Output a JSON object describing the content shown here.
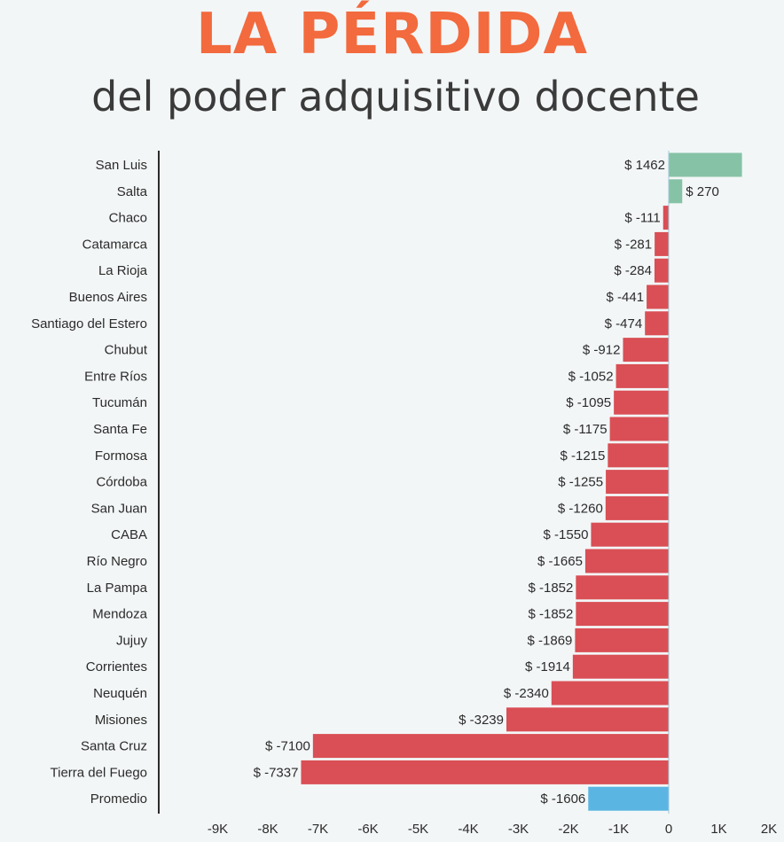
{
  "title": "LA PÉRDIDA",
  "subtitle": "del poder adquisitivo docente",
  "colors": {
    "positive": "#86c3a6",
    "negative": "#d94f55",
    "average": "#5bb5e2",
    "title": "#f26a3d",
    "axis": "#2b2b2b"
  },
  "chart_data": {
    "type": "bar",
    "orientation": "horizontal",
    "title": "LA PÉRDIDA",
    "subtitle": "del poder adquisitivo docente",
    "xlabel": "",
    "ylabel": "",
    "xlim": [
      -9700,
      2000
    ],
    "x_ticks": [
      {
        "value": -9000,
        "label": "-9K"
      },
      {
        "value": -8000,
        "label": "-8K"
      },
      {
        "value": -7000,
        "label": "-7K"
      },
      {
        "value": -6000,
        "label": "-6K"
      },
      {
        "value": -5000,
        "label": "-5K"
      },
      {
        "value": -4000,
        "label": "-4K"
      },
      {
        "value": -3000,
        "label": "-3K"
      },
      {
        "value": -2000,
        "label": "-2K"
      },
      {
        "value": -1000,
        "label": "-1K"
      },
      {
        "value": 0,
        "label": "0"
      },
      {
        "value": 1000,
        "label": "1K"
      },
      {
        "value": 2000,
        "label": "2K"
      }
    ],
    "categories": [
      "San Luis",
      "Salta",
      "Chaco",
      "Catamarca",
      "La Rioja",
      "Buenos Aires",
      "Santiago del Estero",
      "Chubut",
      "Entre Ríos",
      "Tucumán",
      "Santa Fe",
      "Formosa",
      "Córdoba",
      "San Juan",
      "CABA",
      "Río Negro",
      "La Pampa",
      "Mendoza",
      "Jujuy",
      "Corrientes",
      "Neuquén",
      "Misiones",
      "Santa Cruz",
      "Tierra del Fuego",
      "Promedio"
    ],
    "values": [
      1462,
      270,
      -111,
      -281,
      -284,
      -441,
      -474,
      -912,
      -1052,
      -1095,
      -1175,
      -1215,
      -1255,
      -1260,
      -1550,
      -1665,
      -1852,
      -1852,
      -1869,
      -1914,
      -2340,
      -3239,
      -7100,
      -7337,
      -1606
    ],
    "value_labels": [
      "$ 1462",
      "$ 270",
      "$ -111",
      "$ -281",
      "$ -284",
      "$ -441",
      "$ -474",
      "$ -912",
      "$ -1052",
      "$ -1095",
      "$ -1175",
      "$ -1215",
      "$ -1255",
      "$ -1260",
      "$ -1550",
      "$ -1665",
      "$ -1852",
      "$ -1852",
      "$ -1869",
      "$ -1914",
      "$ -2340",
      "$ -3239",
      "$ -7100",
      "$ -7337",
      "$ -1606"
    ],
    "grid": false,
    "legend": "none"
  }
}
